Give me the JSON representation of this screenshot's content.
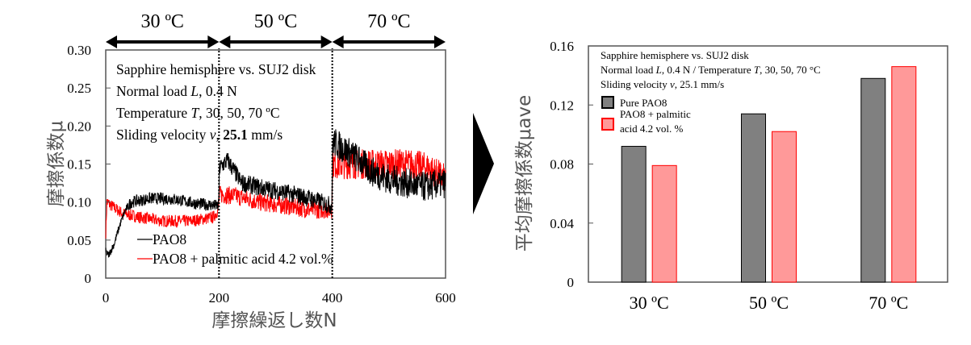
{
  "chart_data": [
    {
      "type": "line",
      "title": "",
      "xlabel": "摩擦繰返し数N",
      "ylabel": "摩擦係数μ",
      "xlim": [
        0,
        600
      ],
      "ylim": [
        0,
        0.3
      ],
      "xticks": [
        "0",
        "200",
        "400",
        "600"
      ],
      "yticks": [
        "0",
        "0.05",
        "0.10",
        "0.15",
        "0.20",
        "0.25",
        "0.30"
      ],
      "xtick_values": [
        0,
        200,
        400,
        600
      ],
      "ytick_values": [
        0,
        0.05,
        0.1,
        0.15,
        0.2,
        0.25,
        0.3
      ],
      "segments": [
        {
          "label": "30 ºC",
          "from": 0,
          "to": 200
        },
        {
          "label": "50 ºC",
          "from": 200,
          "to": 400
        },
        {
          "label": "70 ºC",
          "from": 400,
          "to": 600
        }
      ],
      "annotations": [
        "Sapphire hemisphere vs. SUJ2 disk",
        "Normal load L, 0.4 N",
        "Temperature T, 30, 50, 70 ºC",
        "Sliding velocity v, 25.1 mm/s"
      ],
      "legend": "bottom-left",
      "series": [
        {
          "name": "PAO8",
          "color": "#000000",
          "trend": [
            [
              0,
              0.035
            ],
            [
              5,
              0.03
            ],
            [
              15,
              0.045
            ],
            [
              25,
              0.07
            ],
            [
              35,
              0.09
            ],
            [
              45,
              0.1
            ],
            [
              80,
              0.105
            ],
            [
              120,
              0.104
            ],
            [
              160,
              0.098
            ],
            [
              199,
              0.095
            ],
            [
              201,
              0.145
            ],
            [
              215,
              0.155
            ],
            [
              240,
              0.125
            ],
            [
              280,
              0.118
            ],
            [
              320,
              0.112
            ],
            [
              360,
              0.105
            ],
            [
              399,
              0.095
            ],
            [
              401,
              0.18
            ],
            [
              420,
              0.17
            ],
            [
              440,
              0.16
            ],
            [
              470,
              0.14
            ],
            [
              500,
              0.13
            ],
            [
              530,
              0.125
            ],
            [
              560,
              0.12
            ],
            [
              600,
              0.125
            ]
          ]
        },
        {
          "name": "PAO8 + palmitic acid 4.2 vol.%",
          "color": "#ff0000",
          "trend": [
            [
              0,
              0.06
            ],
            [
              2,
              0.1
            ],
            [
              10,
              0.095
            ],
            [
              30,
              0.085
            ],
            [
              60,
              0.08
            ],
            [
              100,
              0.075
            ],
            [
              150,
              0.075
            ],
            [
              190,
              0.08
            ],
            [
              199,
              0.09
            ],
            [
              201,
              0.11
            ],
            [
              230,
              0.108
            ],
            [
              270,
              0.1
            ],
            [
              320,
              0.095
            ],
            [
              360,
              0.09
            ],
            [
              399,
              0.09
            ],
            [
              401,
              0.15
            ],
            [
              430,
              0.15
            ],
            [
              470,
              0.15
            ],
            [
              500,
              0.15
            ],
            [
              540,
              0.15
            ],
            [
              570,
              0.145
            ],
            [
              600,
              0.13
            ]
          ]
        }
      ]
    },
    {
      "type": "bar",
      "title": "",
      "xlabel": "",
      "ylabel": "平均摩擦係数μave",
      "ylim": [
        0,
        0.16
      ],
      "yticks": [
        "0",
        "0.04",
        "0.08",
        "0.12",
        "0.16"
      ],
      "ytick_values": [
        0,
        0.04,
        0.08,
        0.12,
        0.16
      ],
      "categories": [
        "30 ºC",
        "50 ºC",
        "70 ºC"
      ],
      "annotations": [
        "Sapphire hemisphere vs. SUJ2 disk",
        "Normal load L, 0.4 N / Temperature T, 30, 50, 70 °C",
        "Sliding velocity v, 25.1  mm/s"
      ],
      "legend": "top-left",
      "series": [
        {
          "name": "Pure PAO8",
          "fill": "#808080",
          "stroke": "#000000",
          "values": [
            0.092,
            0.114,
            0.138
          ]
        },
        {
          "name": "PAO8 + palmitic acid 4.2 vol. %",
          "legend_lines": [
            "PAO8 + palmitic",
            "acid 4.2 vol. %"
          ],
          "fill": "#ff9999",
          "stroke": "#ff0000",
          "values": [
            0.079,
            0.102,
            0.146
          ]
        }
      ]
    }
  ]
}
